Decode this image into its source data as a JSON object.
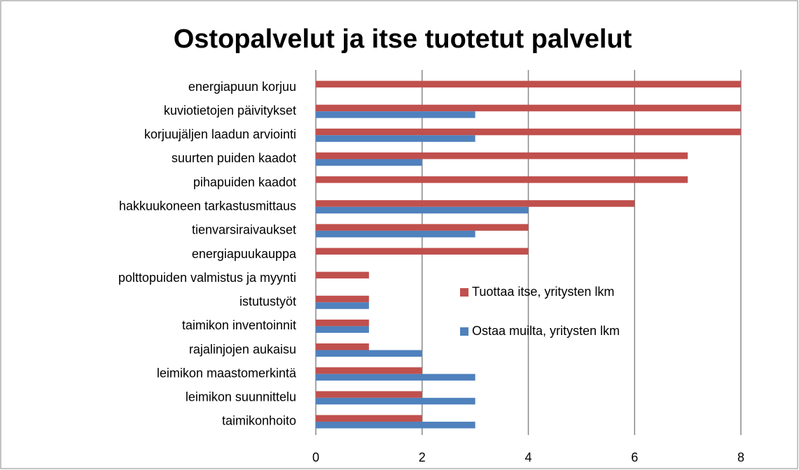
{
  "chart_data": {
    "type": "hbar",
    "title": "Ostopalvelut ja itse tuotetut palvelut",
    "categories": [
      "energiapuun korjuu",
      "kuviotietojen päivitykset",
      "korjuujäljen laadun arviointi",
      "suurten puiden kaadot",
      "pihapuiden kaadot",
      "hakkuukoneen tarkastusmittaus",
      "tienvarsiraivaukset",
      "energiapuukauppa",
      "polttopuiden valmistus ja myynti",
      "istutustyöt",
      "taimikon inventoinnit",
      "rajalinjojen aukaisu",
      "leimikon maastomerkintä",
      "leimikon suunnittelu",
      "taimikonhoito"
    ],
    "series": [
      {
        "name": "Tuottaa itse, yritysten lkm",
        "color": "#c0504d",
        "values": [
          8,
          8,
          8,
          7,
          7,
          6,
          4,
          4,
          1,
          1,
          1,
          1,
          2,
          2,
          2
        ]
      },
      {
        "name": "Ostaa muilta, yritysten lkm",
        "color": "#4f81bd",
        "values": [
          0,
          3,
          3,
          2,
          0,
          4,
          3,
          0,
          0,
          1,
          1,
          2,
          3,
          3,
          3
        ]
      }
    ],
    "xlim": [
      0,
      8
    ],
    "xticks": [
      0,
      2,
      4,
      6,
      8
    ],
    "grid": true
  }
}
